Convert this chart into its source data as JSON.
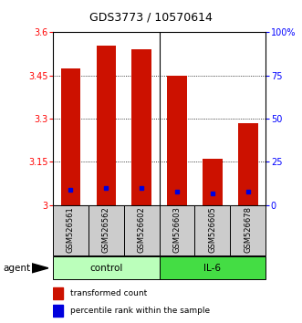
{
  "title": "GDS3773 / 10570614",
  "samples": [
    "GSM526561",
    "GSM526562",
    "GSM526602",
    "GSM526603",
    "GSM526605",
    "GSM526678"
  ],
  "groups": [
    "control",
    "control",
    "control",
    "IL-6",
    "IL-6",
    "IL-6"
  ],
  "ylim_left": [
    3.0,
    3.6
  ],
  "ylim_right": [
    0,
    100
  ],
  "yticks_left": [
    3.0,
    3.15,
    3.3,
    3.45,
    3.6
  ],
  "yticks_left_labels": [
    "3",
    "3.15",
    "3.3",
    "3.45",
    "3.6"
  ],
  "yticks_right": [
    0,
    25,
    50,
    75,
    100
  ],
  "yticks_right_labels": [
    "0",
    "25",
    "50",
    "75",
    "100%"
  ],
  "bar_values": [
    3.475,
    3.555,
    3.54,
    3.45,
    3.16,
    3.285
  ],
  "percentile_values": [
    9,
    10,
    10,
    8,
    7,
    8
  ],
  "bar_color": "#cc1100",
  "percentile_color": "#0000dd",
  "bar_width": 0.55,
  "group_colors": {
    "control": "#bbffbb",
    "IL-6": "#44dd44"
  },
  "group_label": "agent",
  "legend_bar_label": "transformed count",
  "legend_pct_label": "percentile rank within the sample",
  "background_color": "#ffffff",
  "plot_bg_color": "#ffffff",
  "sample_bg_color": "#cccccc"
}
